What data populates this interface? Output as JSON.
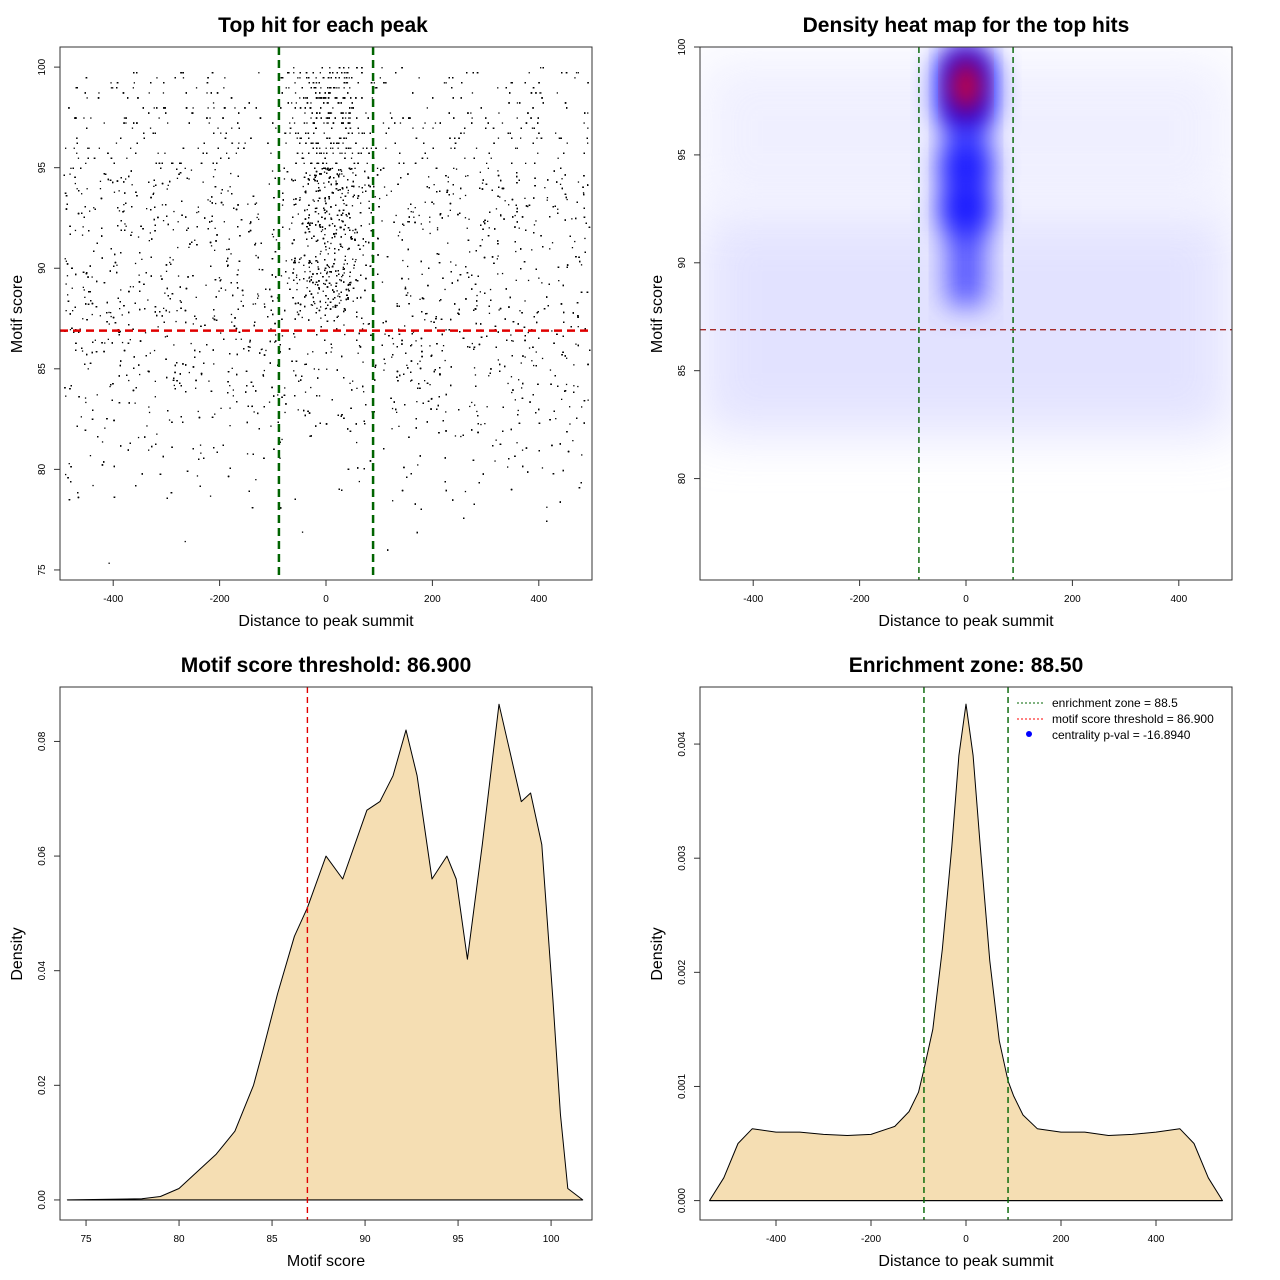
{
  "chart_data": [
    {
      "type": "scatter",
      "title": "Top hit for each peak",
      "xlabel": "Distance to peak summit",
      "ylabel": "Motif score",
      "xlim": [
        -500,
        500
      ],
      "ylim": [
        74.5,
        101
      ],
      "xticks": [
        -400,
        -200,
        0,
        200,
        400
      ],
      "yticks": [
        75,
        80,
        85,
        90,
        95,
        100
      ],
      "vlines": {
        "values": [
          -88.5,
          88.5
        ],
        "color": "#006400",
        "style": "dashed"
      },
      "hlines": {
        "values": [
          86.9
        ],
        "color": "#e00000",
        "style": "dashed"
      },
      "point_color": "#000000",
      "grid": false
    },
    {
      "type": "heatmap",
      "title": "Density heat map for the top hits",
      "xlabel": "Distance to peak summit",
      "ylabel": "Motif score",
      "xlim": [
        -500,
        500
      ],
      "ylim": [
        75.3,
        100
      ],
      "xticks": [
        -400,
        -200,
        0,
        200,
        400
      ],
      "yticks": [
        80,
        85,
        90,
        95,
        100
      ],
      "hotspots": [
        {
          "x": 0,
          "y": 98.8,
          "level": 1.0
        },
        {
          "x": 0,
          "y": 97.3,
          "level": 1.0
        },
        {
          "x": 0,
          "y": 94.5,
          "level": 0.7
        },
        {
          "x": 0,
          "y": 92.5,
          "level": 0.75
        }
      ],
      "colors": [
        "#ffffff",
        "#0000ff",
        "#ff0000"
      ],
      "vlines": {
        "values": [
          -88.5,
          88.5
        ],
        "color": "#006400",
        "style": "dashed"
      },
      "hlines": {
        "values": [
          86.9
        ],
        "color": "#a52a2a",
        "style": "dashed"
      },
      "grid": false
    },
    {
      "type": "area",
      "title": "Motif score threshold: 86.900",
      "xlabel": "Motif score",
      "ylabel": "Density",
      "xlim": [
        73.6,
        102.2
      ],
      "ylim": [
        -0.0035,
        0.0895
      ],
      "xticks": [
        75,
        80,
        85,
        90,
        95,
        100
      ],
      "yticks": [
        "0.00",
        "0.02",
        "0.04",
        "0.06",
        "0.08"
      ],
      "x": [
        74,
        78,
        79,
        80,
        81,
        82,
        83,
        84,
        84.5,
        85.3,
        86.2,
        86.9,
        87.9,
        88.8,
        90.1,
        90.8,
        91.5,
        92.2,
        92.8,
        93.6,
        94.4,
        94.9,
        95.5,
        96.3,
        97.2,
        97.8,
        98.4,
        98.9,
        99.5,
        100.1,
        100.5,
        100.9,
        101.7
      ],
      "y": [
        0,
        0.0002,
        0.0006,
        0.002,
        0.005,
        0.008,
        0.012,
        0.02,
        0.026,
        0.036,
        0.046,
        0.051,
        0.06,
        0.056,
        0.068,
        0.0695,
        0.074,
        0.082,
        0.074,
        0.056,
        0.06,
        0.056,
        0.042,
        0.062,
        0.0865,
        0.078,
        0.0695,
        0.071,
        0.062,
        0.035,
        0.015,
        0.002,
        0
      ],
      "fill": "#f5deb3",
      "vlines": {
        "values": [
          86.9
        ],
        "color": "#e00000",
        "style": "dashed"
      },
      "grid": false
    },
    {
      "type": "area",
      "title": "Enrichment zone: 88.50",
      "xlabel": "Distance to peak summit",
      "ylabel": "Density",
      "xlim": [
        -560,
        560
      ],
      "ylim": [
        -0.00017,
        0.0045
      ],
      "xticks": [
        -400,
        -200,
        0,
        200,
        400
      ],
      "yticks": [
        "0.000",
        "0.001",
        "0.002",
        "0.003",
        "0.004"
      ],
      "x": [
        -540,
        -510,
        -480,
        -450,
        -400,
        -350,
        -300,
        -250,
        -200,
        -150,
        -120,
        -100,
        -88.5,
        -70,
        -50,
        -30,
        -15,
        0,
        15,
        30,
        50,
        70,
        88.5,
        100,
        120,
        150,
        200,
        250,
        300,
        350,
        400,
        450,
        480,
        510,
        540
      ],
      "y": [
        0,
        0.0002,
        0.0005,
        0.00063,
        0.0006,
        0.0006,
        0.00058,
        0.00057,
        0.00058,
        0.00065,
        0.00078,
        0.00095,
        0.00115,
        0.0015,
        0.0022,
        0.0031,
        0.0039,
        0.00435,
        0.0039,
        0.0031,
        0.0021,
        0.0014,
        0.00105,
        0.00092,
        0.00075,
        0.00063,
        0.0006,
        0.0006,
        0.00057,
        0.00058,
        0.0006,
        0.00063,
        0.0005,
        0.0002,
        0
      ],
      "fill": "#f5deb3",
      "vlines": {
        "values": [
          -88.5,
          88.5
        ],
        "color": "#006400",
        "style": "dashed"
      },
      "legend": {
        "position": "top-right",
        "entries": [
          {
            "label": "enrichment zone = 88.5",
            "color": "#006400",
            "kind": "dotted-line"
          },
          {
            "label": "motif score threshold = 86.900",
            "color": "#ff0000",
            "kind": "dotted-line"
          },
          {
            "label": "centrality p-val = -16.8940",
            "color": "#0000ff",
            "kind": "point"
          }
        ]
      },
      "grid": false
    }
  ]
}
